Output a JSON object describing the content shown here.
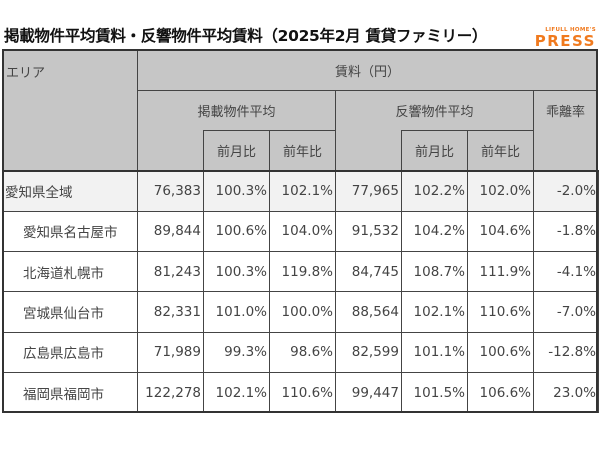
{
  "title": "掲載物件平均賃料・反響物件平均賃料（2025年2月 賃貸ファミリー）",
  "logo": {
    "small": "LIFULL HOME'S",
    "big": "PRESS",
    "color": "#f07a1e"
  },
  "header": {
    "area": "エリア",
    "rent": "賃料（円）",
    "listed_avg": "掲載物件平均",
    "inquiry_avg": "反響物件平均",
    "divergence": "乖離率",
    "mom": "前月比",
    "yoy": "前年比"
  },
  "rows": [
    {
      "area": "愛知県全域",
      "listed": "76,383",
      "listed_mom": "100.3%",
      "listed_yoy": "102.1%",
      "inquiry": "77,965",
      "inquiry_mom": "102.2%",
      "inquiry_yoy": "102.0%",
      "divergence": "-2.0%"
    },
    {
      "area": "愛知県名古屋市",
      "listed": "89,844",
      "listed_mom": "100.6%",
      "listed_yoy": "104.0%",
      "inquiry": "91,532",
      "inquiry_mom": "104.2%",
      "inquiry_yoy": "104.6%",
      "divergence": "-1.8%"
    },
    {
      "area": "北海道札幌市",
      "listed": "81,243",
      "listed_mom": "100.3%",
      "listed_yoy": "119.8%",
      "inquiry": "84,745",
      "inquiry_mom": "108.7%",
      "inquiry_yoy": "111.9%",
      "divergence": "-4.1%"
    },
    {
      "area": "宮城県仙台市",
      "listed": "82,331",
      "listed_mom": "101.0%",
      "listed_yoy": "100.0%",
      "inquiry": "88,564",
      "inquiry_mom": "102.1%",
      "inquiry_yoy": "110.6%",
      "divergence": "-7.0%"
    },
    {
      "area": "広島県広島市",
      "listed": "71,989",
      "listed_mom": "99.3%",
      "listed_yoy": "98.6%",
      "inquiry": "82,599",
      "inquiry_mom": "101.1%",
      "inquiry_yoy": "100.6%",
      "divergence": "-12.8%"
    },
    {
      "area": "福岡県福岡市",
      "listed": "122,278",
      "listed_mom": "102.1%",
      "listed_yoy": "110.6%",
      "inquiry": "99,447",
      "inquiry_mom": "101.5%",
      "inquiry_yoy": "106.6%",
      "divergence": "23.0%"
    }
  ]
}
